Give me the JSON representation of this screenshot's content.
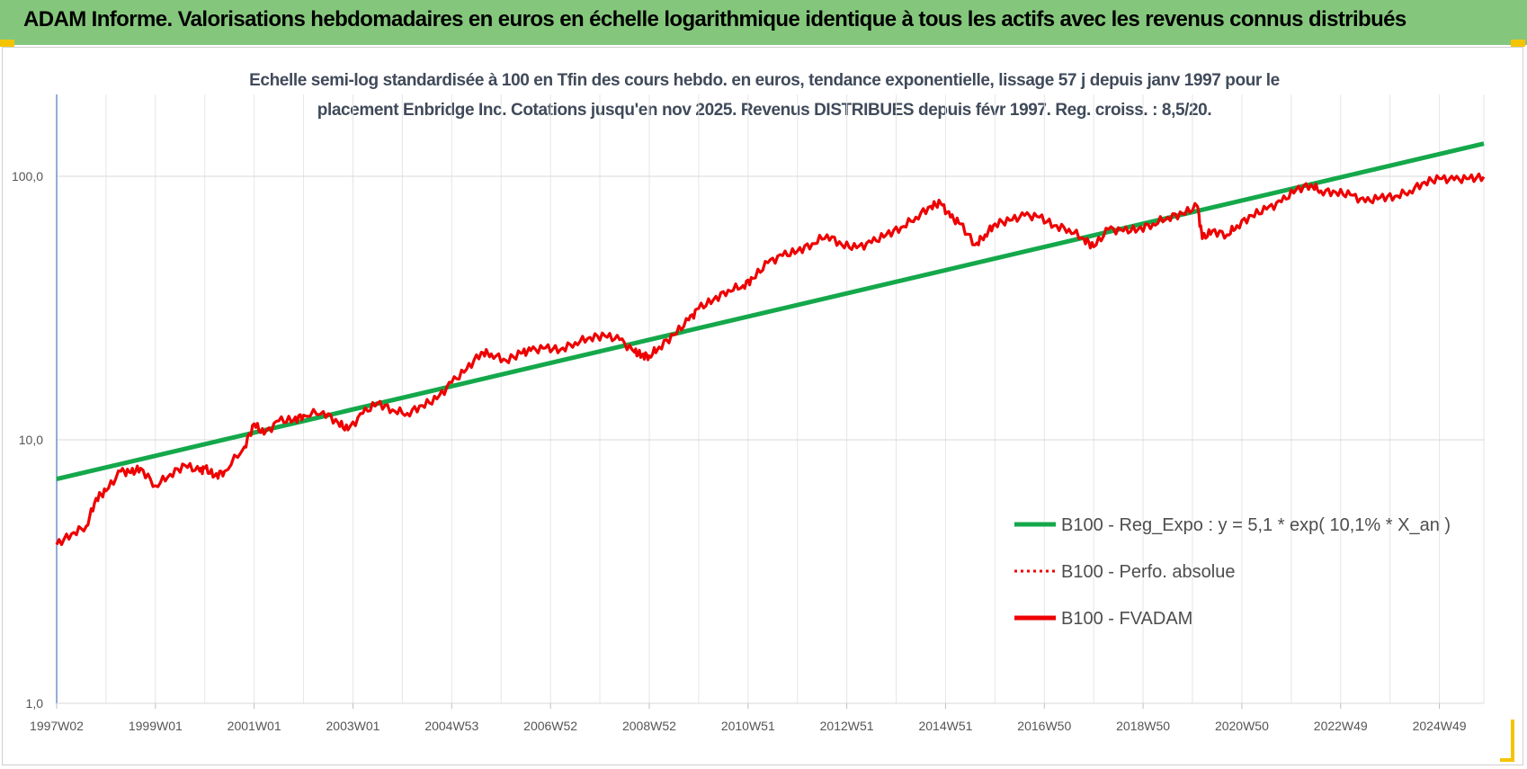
{
  "header": {
    "banner_title": "ADAM Informe. Valorisations hebdomadaires en euros en échelle logarithmique identique à tous les actifs avec les revenus connus distribués"
  },
  "colors": {
    "banner_bg": "#84c77c",
    "trend": "#14a84b",
    "series": "#ee0000",
    "accent_corner": "#f5c400"
  },
  "chart_data": {
    "type": "line",
    "title_lines": [
      "Echelle semi-log standardisée à 100 en Tfin des cours hebdo. en euros, tendance exponentielle, lissage 57 j depuis janv 1997 pour le",
      "placement Enbridge Inc. Cotations jusqu'en nov 2025. Revenus DISTRIBUES depuis févr 1997. Reg. croiss. : 8,5/20."
    ],
    "y_scale": "log",
    "ylim": [
      1,
      200
    ],
    "y_ticks": [
      {
        "value": 1,
        "label": "1,0"
      },
      {
        "value": 10,
        "label": "10,0"
      },
      {
        "value": 100,
        "label": "100,0"
      }
    ],
    "xlim": [
      1997.0,
      2025.9
    ],
    "x_ticks": [
      {
        "value": 1997.0,
        "label": "1997W02"
      },
      {
        "value": 1999.0,
        "label": "1999W01"
      },
      {
        "value": 2001.0,
        "label": "2001W01"
      },
      {
        "value": 2003.0,
        "label": "2003W01"
      },
      {
        "value": 2005.0,
        "label": "2004W53"
      },
      {
        "value": 2007.0,
        "label": "2006W52"
      },
      {
        "value": 2009.0,
        "label": "2008W52"
      },
      {
        "value": 2011.0,
        "label": "2010W51"
      },
      {
        "value": 2013.0,
        "label": "2012W51"
      },
      {
        "value": 2015.0,
        "label": "2014W51"
      },
      {
        "value": 2017.0,
        "label": "2016W50"
      },
      {
        "value": 2019.0,
        "label": "2018W50"
      },
      {
        "value": 2021.0,
        "label": "2020W50"
      },
      {
        "value": 2023.0,
        "label": "2022W49"
      },
      {
        "value": 2025.0,
        "label": "2024W49"
      }
    ],
    "grid": true,
    "legend_position": "bottom-right",
    "series": [
      {
        "name": "B100 - Reg_Expo : y = 5,1 * exp( 10,1% *  X_an )",
        "style": "solid",
        "color": "#14a84b",
        "x": [
          1997.0,
          2025.9
        ],
        "y": [
          7.1,
          133
        ]
      },
      {
        "name": "B100 - Perfo. absolue",
        "style": "dotted",
        "color": "#ee0000",
        "x": [],
        "y": []
      },
      {
        "name": "B100 - FVADAM",
        "style": "solid",
        "color": "#ee0000",
        "x": [
          1997.0,
          1997.3,
          1997.6,
          1997.8,
          1998.0,
          1998.3,
          1998.5,
          1998.7,
          1999.0,
          1999.3,
          1999.6,
          1999.9,
          2000.0,
          2000.2,
          2000.4,
          2000.8,
          2001.0,
          2001.2,
          2001.5,
          2001.8,
          2002.0,
          2002.4,
          2002.7,
          2002.9,
          2003.2,
          2003.5,
          2003.8,
          2004.1,
          2004.4,
          2004.7,
          2005.0,
          2005.3,
          2005.6,
          2005.8,
          2006.1,
          2006.4,
          2006.6,
          2006.9,
          2007.2,
          2007.5,
          2007.8,
          2008.1,
          2008.4,
          2008.7,
          2008.85,
          2009.0,
          2009.2,
          2009.5,
          2009.8,
          2010.0,
          2010.3,
          2010.6,
          2010.9,
          2011.1,
          2011.4,
          2011.7,
          2012.0,
          2012.3,
          2012.6,
          2012.9,
          2013.2,
          2013.5,
          2013.8,
          2014.1,
          2014.4,
          2014.7,
          2014.9,
          2015.1,
          2015.3,
          2015.6,
          2015.8,
          2016.0,
          2016.3,
          2016.6,
          2016.9,
          2017.2,
          2017.5,
          2017.8,
          2018.0,
          2018.3,
          2018.6,
          2018.9,
          2019.2,
          2019.5,
          2019.8,
          2020.1,
          2020.2,
          2020.4,
          2020.7,
          2020.9,
          2021.2,
          2021.5,
          2021.8,
          2022.1,
          2022.4,
          2022.6,
          2022.9,
          2023.2,
          2023.5,
          2023.8,
          2024.1,
          2024.4,
          2024.7,
          2025.0,
          2025.3,
          2025.6,
          2025.9
        ],
        "y": [
          4.0,
          4.4,
          4.7,
          6.0,
          6.4,
          7.6,
          7.5,
          7.8,
          6.7,
          7.4,
          8.0,
          7.6,
          7.8,
          7.3,
          7.6,
          9.4,
          11.5,
          10.5,
          11.8,
          11.9,
          12.4,
          12.8,
          11.6,
          10.9,
          12.6,
          13.8,
          13.0,
          12.6,
          13.5,
          14.3,
          16.5,
          18.5,
          21.5,
          21.2,
          20.0,
          21.3,
          21.8,
          22.3,
          22.0,
          23.4,
          24.5,
          24.8,
          24.0,
          21.5,
          21.0,
          20.8,
          22.5,
          25.0,
          28.5,
          31.5,
          34.0,
          37.0,
          38.5,
          41.0,
          47.0,
          50.0,
          52.0,
          55.5,
          60.0,
          55.0,
          53.5,
          56.0,
          60.0,
          64.0,
          70.0,
          77.0,
          79.0,
          70.0,
          66.0,
          55.0,
          60.0,
          66.0,
          68.0,
          71.0,
          70.0,
          65.0,
          63.0,
          58.0,
          54.0,
          63.0,
          62.0,
          63.0,
          66.0,
          70.0,
          72.0,
          77.0,
          58.0,
          62.0,
          60.0,
          65.0,
          71.0,
          75.0,
          80.0,
          89.0,
          93.0,
          88.0,
          87.0,
          85.0,
          80.0,
          83.0,
          84.0,
          88.0,
          95.0,
          98.0,
          97.0,
          98.0,
          99.5
        ]
      }
    ]
  }
}
